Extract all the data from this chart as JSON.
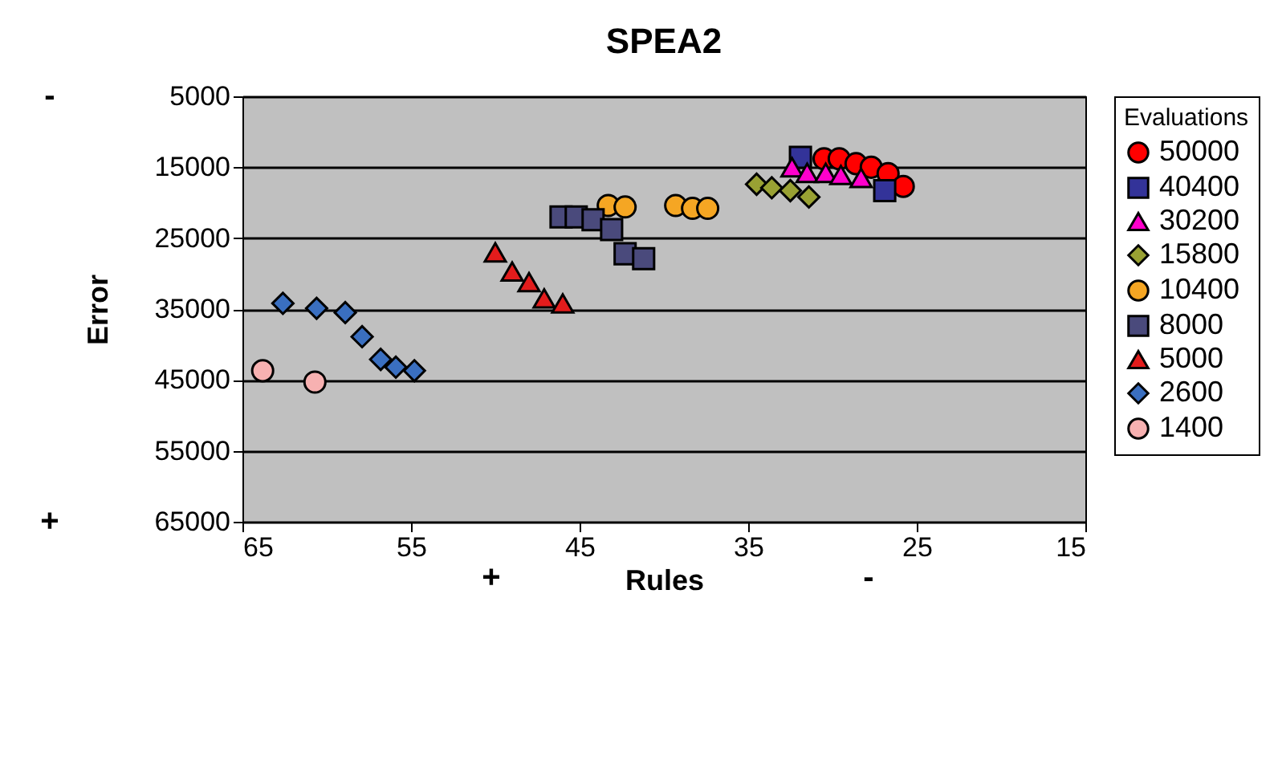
{
  "chart_data": {
    "type": "scatter",
    "title": "SPEA2",
    "xlabel": "Rules",
    "ylabel": "Error",
    "legend_title": "Evaluations",
    "xlim": [
      65,
      15
    ],
    "xticks": [
      65,
      55,
      45,
      35,
      25,
      15
    ],
    "ylim": [
      65000,
      5000
    ],
    "yticks": [
      5000,
      15000,
      25000,
      35000,
      45000,
      55000,
      65000
    ],
    "grid": "y",
    "legend": "right",
    "annotations": [
      "-",
      "+",
      "+",
      "-"
    ],
    "series": [
      {
        "name": "50000",
        "color": "#ff0000",
        "marker": "circle",
        "x": [
          30.5,
          29.6,
          28.6,
          27.7,
          26.7,
          25.8
        ],
        "values": [
          13800,
          13800,
          14500,
          15000,
          15900,
          17700
        ]
      },
      {
        "name": "40400",
        "color": "#333399",
        "marker": "square",
        "x": [
          31.9,
          26.9
        ],
        "values": [
          13600,
          18300
        ]
      },
      {
        "name": "30200",
        "color": "#ff00cc",
        "marker": "triangle",
        "x": [
          32.4,
          31.5,
          30.4,
          29.5,
          28.3
        ],
        "values": [
          15000,
          15800,
          15800,
          16100,
          16500
        ]
      },
      {
        "name": "15800",
        "color": "#99a133",
        "marker": "diamond",
        "x": [
          34.5,
          33.6,
          32.5,
          31.4
        ],
        "values": [
          17400,
          17900,
          18300,
          19200
        ]
      },
      {
        "name": "10400",
        "color": "#f5a623",
        "marker": "circle",
        "x": [
          43.3,
          42.3,
          39.3,
          38.3,
          37.4
        ],
        "values": [
          20400,
          20600,
          20400,
          20800,
          20800
        ]
      },
      {
        "name": "8000",
        "color": "#4a4a7c",
        "marker": "square",
        "x": [
          46.1,
          45.2,
          44.2,
          43.1,
          42.3,
          41.2
        ],
        "values": [
          22000,
          22000,
          22400,
          23800,
          27200,
          27900
        ]
      },
      {
        "name": "5000",
        "color": "#e31c1c",
        "marker": "triangle",
        "x": [
          50.0,
          49.0,
          48.0,
          47.1,
          46.0
        ],
        "values": [
          27000,
          29700,
          31200,
          33500,
          34200
        ]
      },
      {
        "name": "2600",
        "color": "#3a6fc0",
        "marker": "diamond",
        "x": [
          62.6,
          60.6,
          58.9,
          57.9,
          56.8,
          55.9,
          54.8
        ],
        "values": [
          34200,
          34900,
          35500,
          38900,
          42100,
          43200,
          43700
        ]
      },
      {
        "name": "1400",
        "color": "#f7b1b1",
        "marker": "circle",
        "x": [
          63.8,
          60.7
        ],
        "values": [
          43700,
          45300
        ]
      }
    ]
  }
}
